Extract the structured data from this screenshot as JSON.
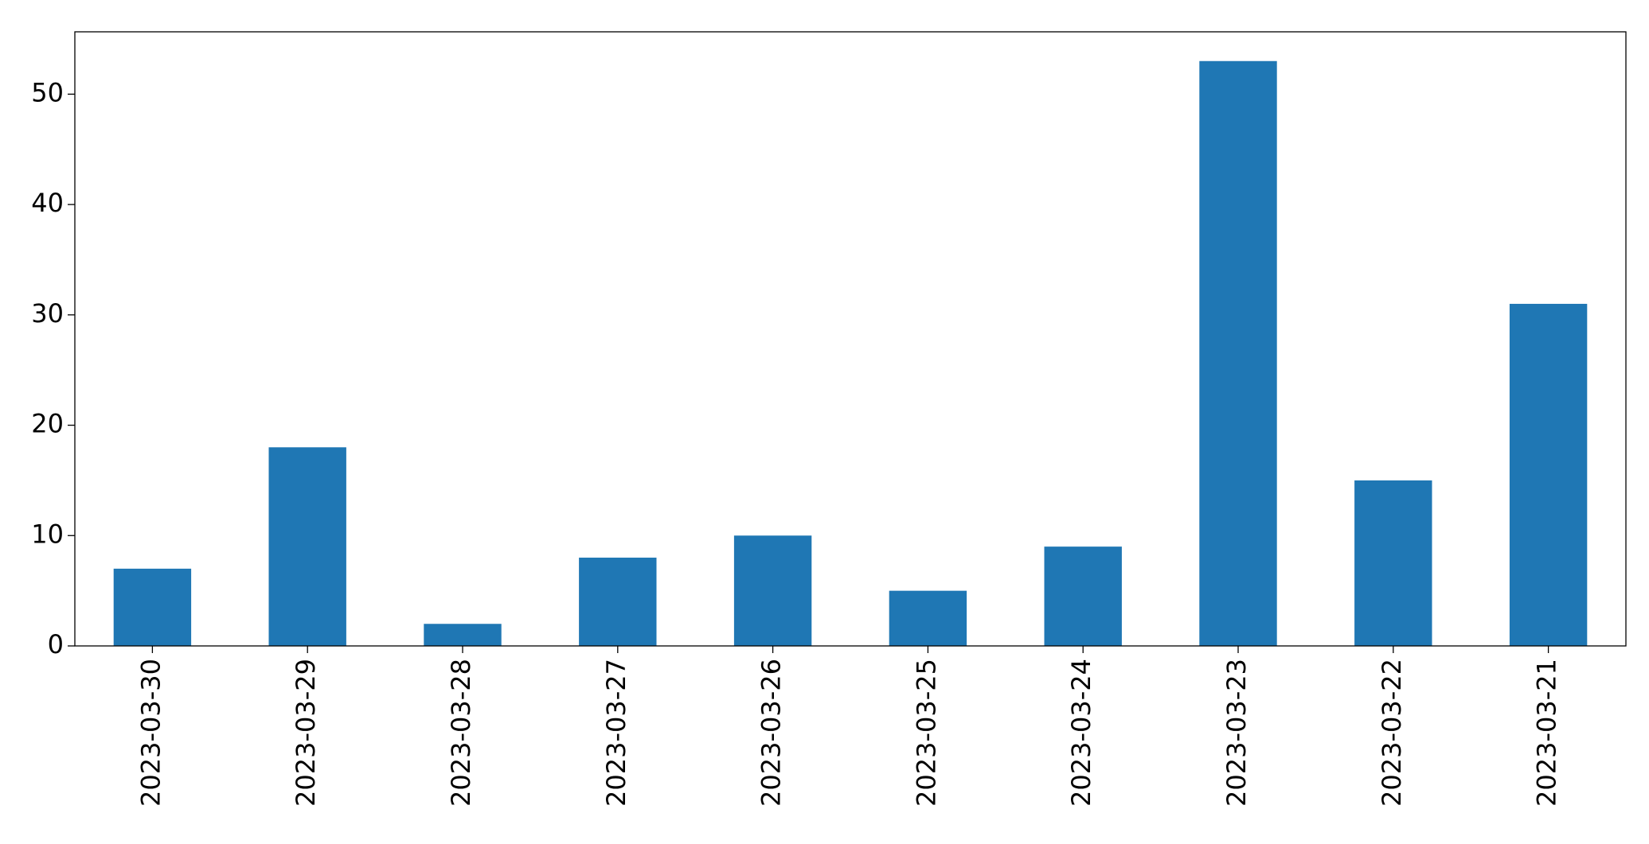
{
  "chart_data": {
    "type": "bar",
    "categories": [
      "2023-03-30",
      "2023-03-29",
      "2023-03-28",
      "2023-03-27",
      "2023-03-26",
      "2023-03-25",
      "2023-03-24",
      "2023-03-23",
      "2023-03-22",
      "2023-03-21"
    ],
    "values": [
      7,
      18,
      2,
      8,
      10,
      5,
      9,
      53,
      15,
      31
    ],
    "color": "#1f77b4",
    "ylim": [
      0,
      55.65
    ],
    "yticks": [
      0,
      10,
      20,
      30,
      40,
      50
    ],
    "grid": false
  }
}
